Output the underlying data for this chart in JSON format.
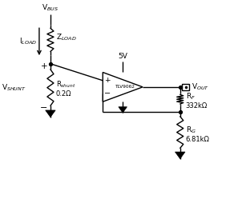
{
  "bg_color": "#ffffff",
  "line_color": "#000000",
  "fig_width": 2.97,
  "fig_height": 2.49,
  "dpi": 100,
  "labels": {
    "vbus": "V$_{BUS}$",
    "iload": "I$_{LOAD}$",
    "zload": "Z$_{LOAD}$",
    "vshunt": "V$_{SHUNT}$",
    "rshunt": "R$_{shunt}$",
    "rshunt_val": "0.2Ω",
    "vcc": "5V",
    "opamp_name": "TLV9062",
    "vout": "V$_{OUT}$",
    "rf": "R$_F$",
    "rf_val": "332kΩ",
    "rg": "R$_G$",
    "rg_val": "6.81kΩ"
  }
}
